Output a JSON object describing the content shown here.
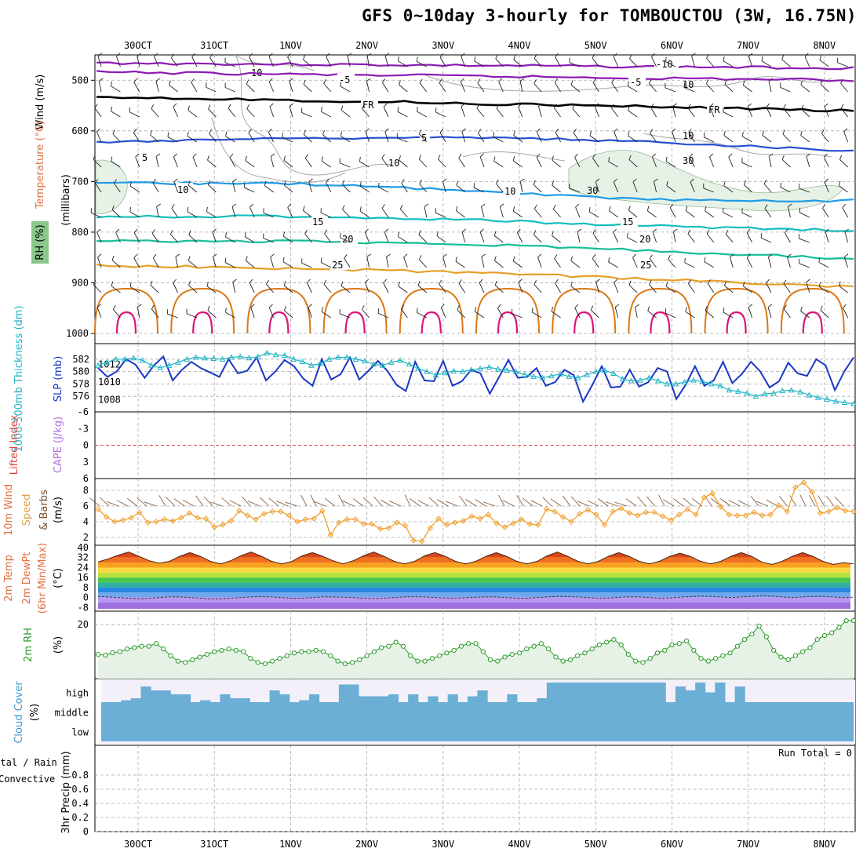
{
  "title": "GFS 0~10day 3-hourly for TOMBOUCTOU (3W, 16.75N)",
  "dates": [
    "30OCT",
    "31OCT",
    "1NOV",
    "2NOV",
    "3NOV",
    "4NOV",
    "5NOV",
    "6NOV",
    "7NOV",
    "8NOV"
  ],
  "colors": {
    "grid": "#aaaaaa",
    "wind_barb": "#000000",
    "slp": "#1a37c4",
    "thickness": "#20b4c4",
    "wind_speed": "#f0a030",
    "cloud": "#6baed6",
    "rh_fill": "#e6f2e6",
    "rh_line": "#2a9a2a",
    "iso_m10": "#8c1ab4",
    "iso_m5": "#8c1ab4",
    "iso_0": "#000000",
    "iso_5": "#2850d2",
    "iso_10": "#1e9be6",
    "iso_15": "#14bebe",
    "iso_20": "#14be96",
    "iso_25": "#e6a028",
    "iso_30": "#dc7814",
    "iso_35": "#dc1478"
  },
  "panels": {
    "upper": {
      "ylabel": "(millibars)",
      "label_wind": "Wind (m/s)",
      "label_temp": "Temperature (°C)",
      "label_rh": "RH (%)",
      "chart_data": {
        "type": "line",
        "y_ticks": [
          500,
          600,
          700,
          800,
          900,
          1000
        ],
        "ylim": [
          450,
          1000
        ],
        "contour_labels": [
          "-10",
          "-5",
          "FR",
          "5",
          "10",
          "15",
          "20",
          "25"
        ],
        "rh_labels": [
          "10",
          "30"
        ]
      }
    },
    "slp": {
      "label_thickness": "1000-500mb Thickness (dm)",
      "label_slp": "SLP (mb)",
      "chart_data": {
        "type": "line",
        "thickness_ticks": [
          582,
          580,
          578,
          576
        ],
        "slp_ticks": [
          1012,
          1010,
          1008
        ],
        "thickness_ylim": [
          574.5,
          583.5
        ],
        "slp_ylim": [
          1007,
          1014
        ],
        "series": [
          {
            "name": "SLP (mb)",
            "values": [
              1011.6,
              1010.6,
              1011.2,
              1012.6,
              1012.0,
              1010.5,
              1011.9,
              1012.9,
              1010.2,
              1011.4,
              1012.3,
              1011.6,
              1011.1,
              1010.6,
              1012.6,
              1011.0,
              1011.3,
              1012.8,
              1010.2,
              1011.2,
              1012.5,
              1011.8,
              1010.4,
              1009.6,
              1012.6,
              1010.3,
              1010.9,
              1012.8,
              1010.3,
              1011.3,
              1012.4,
              1011.3,
              1009.7,
              1009.0,
              1012.3,
              1010.2,
              1010.1,
              1012.4,
              1009.6,
              1010.1,
              1011.4,
              1011.0,
              1008.7,
              1010.6,
              1012.5,
              1010.5,
              1010.6,
              1011.6,
              1009.6,
              1010.0,
              1011.4,
              1010.8,
              1007.8,
              1009.7,
              1011.8,
              1009.4,
              1009.5,
              1011.4,
              1009.5,
              1010.0,
              1011.6,
              1011.2,
              1008.1,
              1009.7,
              1011.8,
              1009.6,
              1010.2,
              1012.3,
              1009.9,
              1010.9,
              1012.3,
              1011.2,
              1009.4,
              1010.1,
              1012.2,
              1011.0,
              1010.7,
              1012.6,
              1011.9,
              1009.1,
              1011.2,
              1012.8
            ]
          },
          {
            "name": "1000-500mb Thickness (dm)",
            "values": [
              581.0,
              581.5,
              582.0,
              582.0,
              582.2,
              581.8,
              581.0,
              580.6,
              581.0,
              581.5,
              582.0,
              582.3,
              582.2,
              582.1,
              582.0,
              582.3,
              582.4,
              582.2,
              582.4,
              583.0,
              582.7,
              582.6,
              582.0,
              581.6,
              581.0,
              581.3,
              582.0,
              582.3,
              582.3,
              582.0,
              581.7,
              581.2,
              581.0,
              581.5,
              581.8,
              581.2,
              580.5,
              580.0,
              579.4,
              579.8,
              580.1,
              580.0,
              580.3,
              580.5,
              580.7,
              580.4,
              580.2,
              580.0,
              579.5,
              579.2,
              579.0,
              579.3,
              579.6,
              579.2,
              579.0,
              579.5,
              580.0,
              580.2,
              579.7,
              578.8,
              578.5,
              578.6,
              579.0,
              578.5,
              578.0,
              578.0,
              578.3,
              578.6,
              578.4,
              578.0,
              577.7,
              577.0,
              576.8,
              576.5,
              576.0,
              576.4,
              576.5,
              576.9,
              577.0,
              576.7,
              576.2,
              575.8,
              575.5,
              575.2,
              575.0,
              574.8
            ]
          }
        ]
      }
    },
    "li": {
      "label_li": "Lifted Index",
      "label_cape": "CAPE (J/kg)",
      "chart_data": {
        "type": "line",
        "ticks": [
          "-6",
          "-3",
          "0",
          "3",
          "6"
        ],
        "ylim": [
          -6,
          6
        ]
      }
    },
    "wind10": {
      "label": "10m Wind Speed & Barbs",
      "unit": "(m/s)",
      "chart_data": {
        "type": "line",
        "ticks": [
          2,
          4,
          6,
          8
        ],
        "ylim": [
          1,
          9.5
        ],
        "series": [
          {
            "name": "Speed",
            "values": [
              5.6,
              4.6,
              4.0,
              4.2,
              4.5,
              5.2,
              3.9,
              4.0,
              4.3,
              4.1,
              4.5,
              5.1,
              4.5,
              4.4,
              3.3,
              3.6,
              4.1,
              5.4,
              4.8,
              4.3,
              5.0,
              5.3,
              5.3,
              4.8,
              4.0,
              4.3,
              4.4,
              5.4,
              2.3,
              3.9,
              4.3,
              4.3,
              3.7,
              3.7,
              3.1,
              3.2,
              3.9,
              3.5,
              1.6,
              1.5,
              3.2,
              4.4,
              3.6,
              3.9,
              4.1,
              4.7,
              4.4,
              4.9,
              3.8,
              3.3,
              3.8,
              4.3,
              3.7,
              3.6,
              5.6,
              5.3,
              4.6,
              4.0,
              5.0,
              5.5,
              4.9,
              3.6,
              5.3,
              5.7,
              5.1,
              4.8,
              5.2,
              5.2,
              4.7,
              4.2,
              4.9,
              5.6,
              4.9,
              7.1,
              7.6,
              5.9,
              4.9,
              4.8,
              4.8,
              5.2,
              4.8,
              4.9,
              6.1,
              5.3,
              8.4,
              9.0,
              7.8,
              5.1,
              5.3,
              5.8,
              5.4,
              5.3
            ]
          }
        ]
      }
    },
    "temp": {
      "label_temp": "2m Temp",
      "label_dewpt": "2m DewPt",
      "label_minmax": "(6hr Min/Max)",
      "unit": "(°C)",
      "chart_data": {
        "type": "area",
        "ticks": [
          40,
          32,
          24,
          16,
          8,
          0,
          -8
        ],
        "ylim": [
          -9,
          40
        ],
        "series": [
          {
            "name": "2m Temp",
            "values": [
              28.5,
              31.0,
              34.0,
              36.5,
              33.0,
              29.5,
              27.5,
              29.0,
              33.0,
              36.0,
              33.0,
              29.0,
              27.0,
              29.5,
              33.5,
              36.5,
              33.0,
              29.0,
              27.0,
              29.0,
              33.5,
              36.0,
              33.0,
              29.5,
              27.0,
              29.5,
              33.5,
              36.5,
              33.0,
              29.0,
              27.0,
              29.0,
              33.5,
              36.0,
              33.0,
              29.0,
              27.0,
              29.0,
              33.0,
              36.0,
              33.0,
              29.0,
              27.0,
              29.0,
              33.5,
              36.5,
              33.0,
              29.0,
              27.0,
              29.0,
              33.0,
              36.0,
              33.0,
              29.0,
              27.0,
              29.0,
              33.0,
              35.5,
              33.0,
              29.0,
              27.0,
              29.0,
              33.0,
              36.0,
              33.0,
              28.5,
              26.5,
              29.0,
              33.0,
              36.0,
              33.0,
              29.0,
              26.5,
              28.0,
              27.0
            ]
          },
          {
            "name": "2m DewPt",
            "values": [
              1.0,
              0.5,
              0.0,
              -0.5,
              -1.0,
              -0.5,
              0.0,
              0.5,
              0.5,
              0.0,
              -0.5,
              -1.0,
              -1.0,
              -0.5,
              0.0,
              0.5,
              0.8,
              0.5,
              0.0,
              -0.5,
              -0.5,
              0.0,
              0.5,
              0.5,
              0.3,
              0.0,
              -0.5,
              -0.8,
              -0.5,
              0.0,
              0.5,
              0.7,
              0.5,
              0.0,
              -0.3,
              -0.5,
              -0.2,
              0.3,
              0.5,
              0.5,
              0.0,
              -0.5,
              -0.5,
              0.0,
              0.5,
              1.0,
              0.8,
              0.5,
              0.0,
              -0.5,
              -0.3,
              0.2,
              0.6,
              0.5,
              0.0,
              -0.5,
              -0.3,
              0.3,
              0.8,
              1.2,
              1.0,
              0.5,
              0.0,
              0.5,
              1.0,
              1.5,
              1.2,
              0.5,
              0.0,
              0.5,
              1.0,
              1.0,
              0.5,
              0.0,
              0.3
            ]
          }
        ]
      }
    },
    "rh": {
      "label": "2m RH",
      "unit": "(%)",
      "chart_data": {
        "type": "area",
        "ticks": [
          20
        ],
        "ylim": [
          0,
          25
        ],
        "series": [
          {
            "name": "2m RH",
            "values": [
              9.0,
              8.7,
              9.6,
              10.0,
              11.0,
              11.5,
              12.0,
              12.0,
              13.0,
              11.0,
              8.5,
              6.5,
              6.0,
              7.0,
              8.0,
              9.0,
              10.0,
              10.5,
              11.0,
              10.5,
              10.0,
              7.5,
              6.0,
              5.5,
              6.5,
              7.5,
              8.5,
              9.5,
              10.0,
              10.0,
              10.5,
              10.0,
              8.5,
              6.5,
              5.5,
              6.0,
              7.0,
              8.5,
              10.0,
              11.5,
              12.0,
              13.5,
              12.0,
              8.5,
              6.5,
              6.5,
              7.5,
              8.5,
              9.5,
              10.5,
              12.0,
              13.0,
              13.0,
              10.0,
              7.0,
              6.5,
              8.0,
              9.0,
              9.5,
              11.0,
              12.0,
              13.0,
              11.0,
              8.0,
              6.5,
              7.0,
              8.5,
              9.5,
              11.0,
              12.5,
              13.5,
              14.5,
              12.5,
              9.0,
              6.5,
              6.0,
              7.5,
              9.5,
              10.5,
              12.5,
              13.0,
              14.0,
              10.5,
              7.5,
              6.5,
              7.5,
              8.5,
              9.5,
              12.0,
              14.5,
              16.5,
              19.5,
              15.5,
              10.5,
              8.0,
              7.0,
              8.5,
              10.0,
              11.5,
              14.5,
              16.0,
              17.0,
              19.0,
              21.5,
              21.5
            ]
          }
        ]
      }
    },
    "cloud": {
      "label": "Cloud Cover",
      "unit": "(%)",
      "levels": [
        "high",
        "middle",
        "low"
      ],
      "chart_data": {
        "type": "area",
        "series": [
          {
            "name": "high",
            "values": [
              0,
              0,
              10,
              20,
              80,
              60,
              60,
              40,
              40,
              0,
              10,
              0,
              40,
              20,
              20,
              0,
              0,
              60,
              40,
              0,
              10,
              40,
              0,
              0,
              90,
              90,
              30,
              30,
              30,
              40,
              0,
              40,
              0,
              30,
              0,
              40,
              0,
              30,
              60,
              0,
              0,
              40,
              0,
              0,
              20,
              100,
              100,
              100,
              100,
              100,
              100,
              100,
              100,
              100,
              100,
              100,
              100,
              0,
              80,
              60,
              100,
              50,
              100,
              0,
              80,
              0,
              0,
              0,
              0,
              0,
              0,
              0,
              0,
              0,
              0,
              0
            ]
          },
          {
            "name": "middle",
            "values": [
              100,
              100,
              100,
              100,
              100,
              100,
              100,
              100,
              100,
              100,
              100,
              100,
              100,
              100,
              100,
              100,
              100,
              100,
              100,
              100,
              100,
              100,
              100,
              100,
              100,
              100,
              100,
              100,
              100,
              100,
              100,
              100,
              100,
              100,
              100,
              100,
              100,
              100,
              100,
              100,
              100,
              100,
              100,
              100,
              100,
              100,
              100,
              100,
              100,
              100,
              100,
              100,
              100,
              100,
              100,
              100,
              100,
              100,
              100,
              100,
              100,
              100,
              100,
              100,
              100,
              100,
              100,
              100,
              100,
              100,
              100,
              100,
              100,
              100,
              100,
              100
            ]
          },
          {
            "name": "low",
            "values": [
              100,
              100,
              100,
              100,
              100,
              100,
              100,
              100,
              100,
              100,
              100,
              100,
              100,
              100,
              100,
              100,
              100,
              100,
              100,
              100,
              100,
              100,
              100,
              100,
              100,
              100,
              100,
              100,
              100,
              100,
              100,
              100,
              100,
              100,
              100,
              100,
              100,
              100,
              100,
              100,
              100,
              100,
              100,
              100,
              100,
              100,
              100,
              100,
              100,
              100,
              100,
              100,
              100,
              100,
              100,
              100,
              100,
              100,
              100,
              100,
              100,
              100,
              100,
              100,
              100,
              100,
              100,
              100,
              100,
              100,
              100,
              100,
              100,
              100,
              100,
              100
            ]
          }
        ]
      }
    },
    "precip": {
      "label_total": "Total / Rain",
      "label_conv": "Convective",
      "ylabel": "3hr Precip (mm)",
      "run_total": "Run Total = 0",
      "chart_data": {
        "type": "bar",
        "ticks": [
          0.8,
          0.6,
          0.4,
          0.2,
          0
        ],
        "ylim": [
          0,
          1
        ],
        "values": []
      }
    }
  }
}
